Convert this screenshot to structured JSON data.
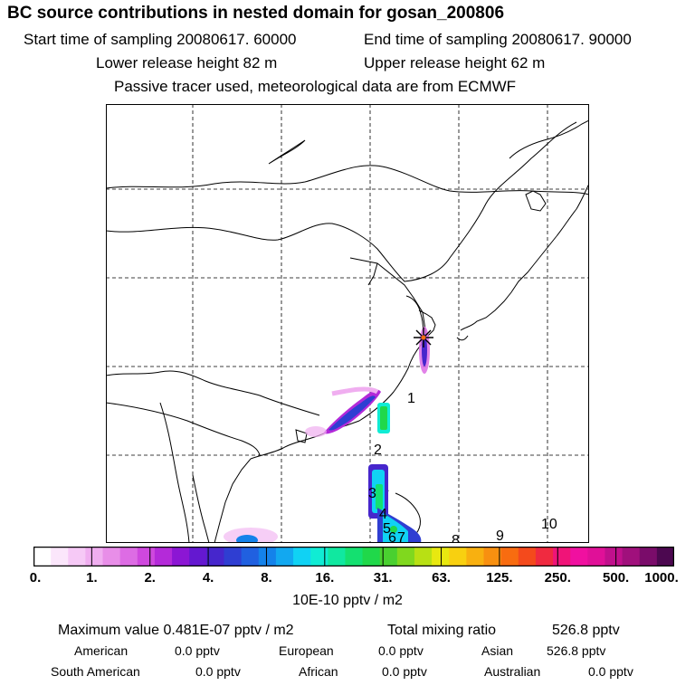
{
  "header": {
    "title": "BC  source contributions in nested domain for gosan_200806",
    "start": "Start time of sampling 20080617. 60000",
    "end": "End time of sampling 20080617. 90000",
    "lower": "Lower release height   82 m",
    "upper": "Upper release height   62 m",
    "note": "Passive tracer used, meteorological data are from ECMWF"
  },
  "map": {
    "receptor_icon": "asterisk-icon",
    "track_labels": [
      "1",
      "2",
      "3",
      "4",
      "5",
      "6",
      "7",
      "8",
      "9",
      "10"
    ]
  },
  "colorbar": {
    "ticks": [
      "0.",
      "1.",
      "2.",
      "4.",
      "8.",
      "16.",
      "31.",
      "63.",
      "125.",
      "250.",
      "500.",
      "1000."
    ],
    "unit": "10E-10 pptv / m2",
    "colors": [
      "#ffffff",
      "#fbe6fb",
      "#f6c9f6",
      "#f0aef0",
      "#e88ee8",
      "#dd6ce4",
      "#cf48de",
      "#b42ad9",
      "#8c16d4",
      "#6418d0",
      "#4626cc",
      "#2f3ed2",
      "#2060e0",
      "#1482ea",
      "#12a8f0",
      "#10d2f4",
      "#10ecd4",
      "#10e8a0",
      "#14e070",
      "#20d84a",
      "#4ad030",
      "#80d81e",
      "#b8e014",
      "#e8e810",
      "#f8d010",
      "#f8b010",
      "#f89010",
      "#f86c10",
      "#f44a1c",
      "#f02a40",
      "#f01478",
      "#f010a0",
      "#e01098",
      "#c0108c",
      "#a0107c",
      "#7a0c6a",
      "#4c0850"
    ]
  },
  "summary": {
    "max_label": "Maximum value  0.481E-07 pptv / m2",
    "total_label": "Total mixing ratio",
    "total_value": "526.8 pptv",
    "regions": [
      {
        "name": "American",
        "value": "0.0 pptv"
      },
      {
        "name": "European",
        "value": "0.0 pptv"
      },
      {
        "name": "Asian",
        "value": "526.8 pptv"
      },
      {
        "name": "South American",
        "value": "0.0 pptv"
      },
      {
        "name": "African",
        "value": "0.0 pptv"
      },
      {
        "name": "Australian",
        "value": "0.0 pptv"
      }
    ]
  }
}
